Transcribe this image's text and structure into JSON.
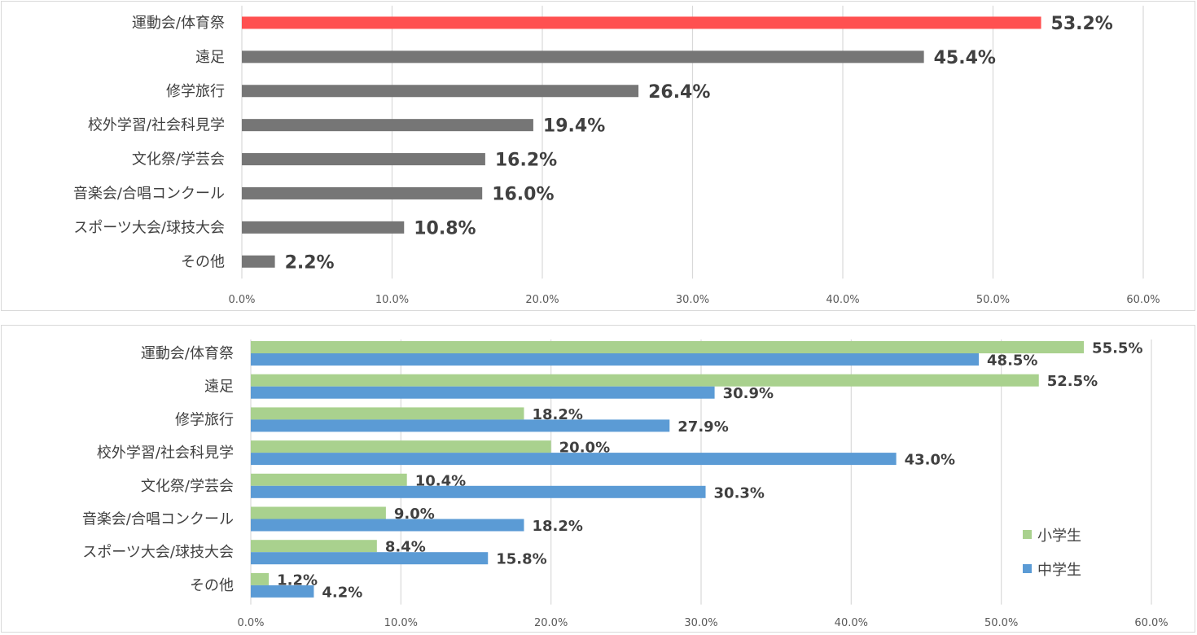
{
  "chart_data": [
    {
      "type": "bar",
      "orientation": "horizontal",
      "categories": [
        "運動会/体育祭",
        "遠足",
        "修学旅行",
        "校外学習/社会科見学",
        "文化祭/学芸会",
        "音楽会/合唱コンクール",
        "スポーツ大会/球技大会",
        "その他"
      ],
      "values": [
        53.2,
        45.4,
        26.4,
        19.4,
        16.2,
        16.0,
        10.8,
        2.2
      ],
      "value_labels": [
        "53.2%",
        "45.4%",
        "26.4%",
        "19.4%",
        "16.2%",
        "16.0%",
        "10.8%",
        "2.2%"
      ],
      "highlight_index": 0,
      "colors": {
        "highlight": "#ff5050",
        "bar": "#767676"
      },
      "xlim": [
        0,
        60
      ],
      "xticks": [
        "0.0%",
        "10.0%",
        "20.0%",
        "30.0%",
        "40.0%",
        "50.0%",
        "60.0%"
      ],
      "grid": true
    },
    {
      "type": "bar",
      "orientation": "horizontal",
      "categories": [
        "運動会/体育祭",
        "遠足",
        "修学旅行",
        "校外学習/社会科見学",
        "文化祭/学芸会",
        "音楽会/合唱コンクール",
        "スポーツ大会/球技大会",
        "その他"
      ],
      "series": [
        {
          "name": "小学生",
          "color": "#a9d18e",
          "values": [
            55.5,
            52.5,
            18.2,
            20.0,
            10.4,
            9.0,
            8.4,
            1.2
          ],
          "value_labels": [
            "55.5%",
            "52.5%",
            "18.2%",
            "20.0%",
            "10.4%",
            "9.0%",
            "8.4%",
            "1.2%"
          ]
        },
        {
          "name": "中学生",
          "color": "#5b9bd5",
          "values": [
            48.5,
            30.9,
            27.9,
            43.0,
            30.3,
            18.2,
            15.8,
            4.2
          ],
          "value_labels": [
            "48.5%",
            "30.9%",
            "27.9%",
            "43.0%",
            "30.3%",
            "18.2%",
            "15.8%",
            "4.2%"
          ]
        }
      ],
      "xlim": [
        0,
        60
      ],
      "xticks": [
        "0.0%",
        "10.0%",
        "20.0%",
        "30.0%",
        "40.0%",
        "50.0%",
        "60.0%"
      ],
      "grid": true,
      "legend": "bottom-right"
    }
  ]
}
